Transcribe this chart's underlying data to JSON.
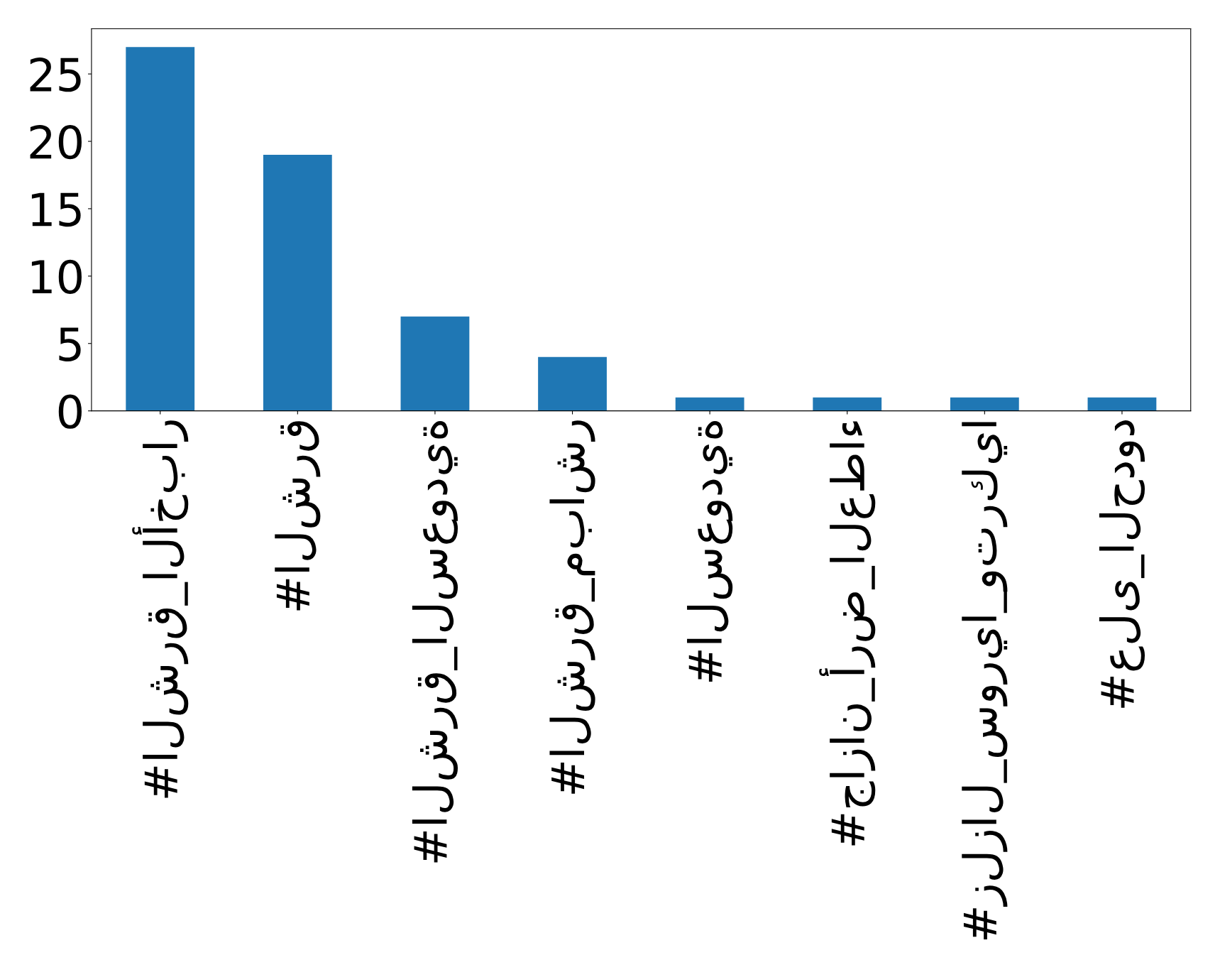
{
  "chart_data": {
    "type": "bar",
    "categories": [
      "#الشرق_الأخبار",
      "#الشرق",
      "#الشرق_السعودية",
      "#الشرق_مباشر",
      "#السعودية",
      "#جازان_أرض_العطاء",
      "#زلزال_سوريا_وتركيا",
      "#على_الحدود"
    ],
    "values": [
      27,
      19,
      7,
      4,
      1,
      1,
      1,
      1
    ],
    "color": "#1f77b4",
    "ylim": [
      0,
      28.35
    ],
    "yticks": [
      0,
      5,
      10,
      15,
      20,
      25
    ],
    "grid": false,
    "legend": false
  }
}
